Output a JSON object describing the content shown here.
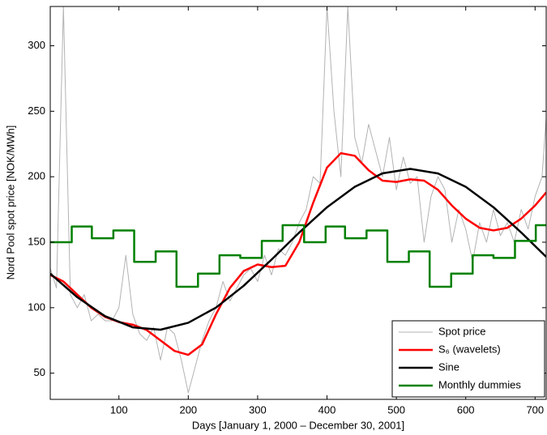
{
  "chart_data": {
    "type": "line",
    "xlabel": "Days [January 1, 2000 – December 30, 2001]",
    "ylabel": "Nord Pool spot price [NOK/MWh]",
    "xlim": [
      1,
      716
    ],
    "ylim": [
      30,
      330
    ],
    "xticks": [
      100,
      200,
      300,
      400,
      500,
      600,
      700
    ],
    "yticks": [
      50,
      100,
      150,
      200,
      250,
      300
    ],
    "grid": false,
    "legend": "lower right",
    "series": [
      {
        "name": "Spot price",
        "color": "#b3b3b3",
        "width": 1,
        "x": [
          1,
          10,
          20,
          30,
          40,
          50,
          60,
          70,
          80,
          90,
          100,
          110,
          120,
          130,
          140,
          150,
          160,
          170,
          180,
          190,
          200,
          210,
          220,
          230,
          240,
          250,
          260,
          270,
          280,
          290,
          300,
          310,
          320,
          330,
          340,
          350,
          360,
          370,
          380,
          390,
          400,
          410,
          420,
          430,
          440,
          450,
          460,
          470,
          480,
          490,
          500,
          510,
          520,
          530,
          540,
          550,
          560,
          570,
          580,
          590,
          600,
          610,
          620,
          630,
          640,
          650,
          660,
          670,
          680,
          690,
          700,
          710,
          716
        ],
        "values": [
          130,
          115,
          330,
          110,
          100,
          110,
          90,
          95,
          90,
          90,
          100,
          140,
          95,
          80,
          75,
          85,
          60,
          85,
          80,
          60,
          35,
          55,
          75,
          90,
          100,
          120,
          105,
          115,
          125,
          130,
          120,
          140,
          125,
          145,
          140,
          150,
          165,
          175,
          200,
          195,
          330,
          250,
          200,
          330,
          230,
          210,
          240,
          220,
          200,
          230,
          190,
          215,
          195,
          200,
          150,
          185,
          200,
          190,
          150,
          175,
          160,
          135,
          165,
          150,
          175,
          155,
          165,
          150,
          175,
          160,
          185,
          200,
          245
        ]
      },
      {
        "name": "S₆ (wavelets)",
        "color": "#ff0000",
        "width": 2.5,
        "x": [
          1,
          20,
          40,
          60,
          80,
          100,
          120,
          140,
          160,
          180,
          200,
          220,
          240,
          260,
          280,
          300,
          320,
          340,
          360,
          380,
          400,
          420,
          440,
          460,
          480,
          500,
          520,
          540,
          560,
          580,
          600,
          620,
          640,
          660,
          680,
          700,
          716
        ],
        "values": [
          125,
          120,
          110,
          100,
          93,
          89,
          87,
          83,
          75,
          67,
          64,
          72,
          95,
          115,
          128,
          133,
          131,
          132,
          150,
          180,
          207,
          218,
          216,
          205,
          197,
          196,
          198,
          197,
          190,
          178,
          168,
          161,
          159,
          161,
          168,
          178,
          188
        ]
      },
      {
        "name": "Sine",
        "color": "#000000",
        "width": 2.5,
        "x": [
          1,
          40,
          80,
          120,
          160,
          200,
          240,
          280,
          320,
          360,
          400,
          440,
          480,
          520,
          560,
          600,
          640,
          680,
          716
        ],
        "values": [
          126.0,
          108.0,
          93.5,
          85.0,
          83.2,
          88.5,
          100.1,
          116.8,
          136.7,
          157.4,
          176.7,
          192.3,
          202.6,
          206.0,
          202.5,
          192.3,
          176.7,
          157.4,
          138.8
        ]
      },
      {
        "name": "Monthly dummies",
        "color": "#008000",
        "width": 2.5,
        "step": "post",
        "x": [
          1,
          32,
          61,
          92,
          122,
          153,
          183,
          214,
          245,
          275,
          306,
          336,
          367,
          398,
          426,
          457,
          487,
          518,
          548,
          579,
          610,
          640,
          671,
          701
        ],
        "values": [
          150,
          162,
          153,
          159,
          135,
          143,
          116,
          126,
          140,
          138,
          151,
          163,
          150,
          162,
          153,
          159,
          135,
          143,
          116,
          126,
          140,
          138,
          151,
          163
        ]
      }
    ]
  }
}
